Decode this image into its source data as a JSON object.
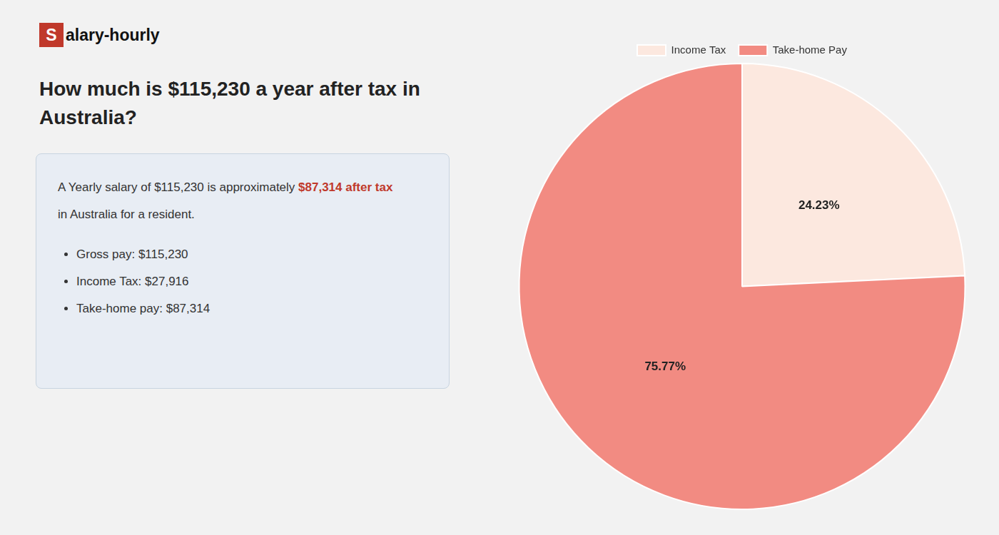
{
  "chart_data": {
    "type": "pie",
    "title": [
      "How much is $115,230 a year after tax in",
      "Australia?"
    ],
    "annotations": [
      {
        "text": "S",
        "color": "#c0392b"
      },
      {
        "text": "alary-hourly"
      },
      {
        "text": "A Yearly salary of $115,230 is approximately "
      },
      {
        "text": "$87,314 after tax",
        "color": "#c0392b"
      },
      {
        "text": "in Australia for a resident."
      },
      {
        "text": "Gross pay: $115,230"
      },
      {
        "text": "Income Tax: $27,916"
      },
      {
        "text": "Take-home pay: $87,314"
      }
    ],
    "categories": [
      "Income Tax",
      "Take-home Pay"
    ],
    "values": [
      24.23,
      75.77
    ],
    "value_labels": [
      "24.23%",
      "75.77%"
    ],
    "colors": [
      "#fce8df",
      "#f28b82"
    ],
    "data_labels": true,
    "legend": "top"
  }
}
